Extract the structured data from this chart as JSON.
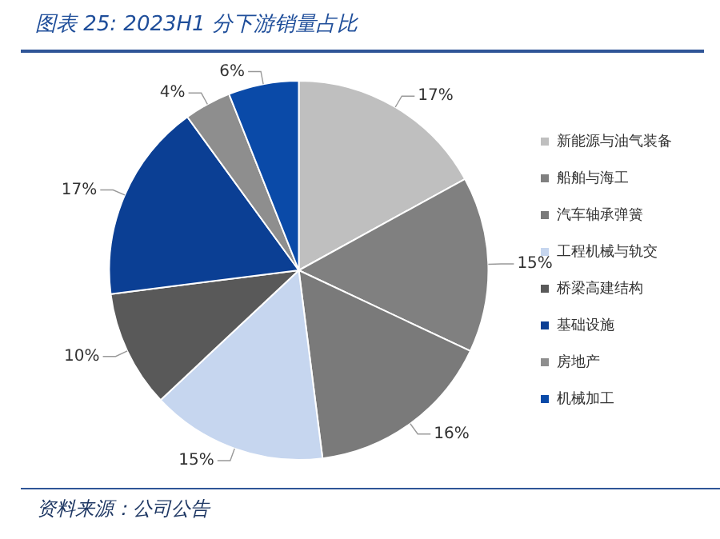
{
  "chart_data": {
    "type": "pie",
    "title": "图表 25:  2023H1 分下游销量占比",
    "categories": [
      "新能源与油气装备",
      "船舶与海工",
      "汽车轴承弹簧",
      "工程机械与轨交",
      "桥梁高建结构",
      "基础设施",
      "房地产",
      "机械加工"
    ],
    "values": [
      17,
      15,
      16,
      15,
      10,
      17,
      4,
      6
    ],
    "value_labels": [
      "17%",
      "15%",
      "16%",
      "15%",
      "10%",
      "17%",
      "4%",
      "6%"
    ],
    "colors": [
      "#bfbfbf",
      "#808080",
      "#7a7a7a",
      "#c6d6ef",
      "#595959",
      "#0b3f94",
      "#8e8e8e",
      "#0a4aa8"
    ],
    "legend": "right",
    "annotations": [
      "资料来源：公司公告"
    ]
  }
}
